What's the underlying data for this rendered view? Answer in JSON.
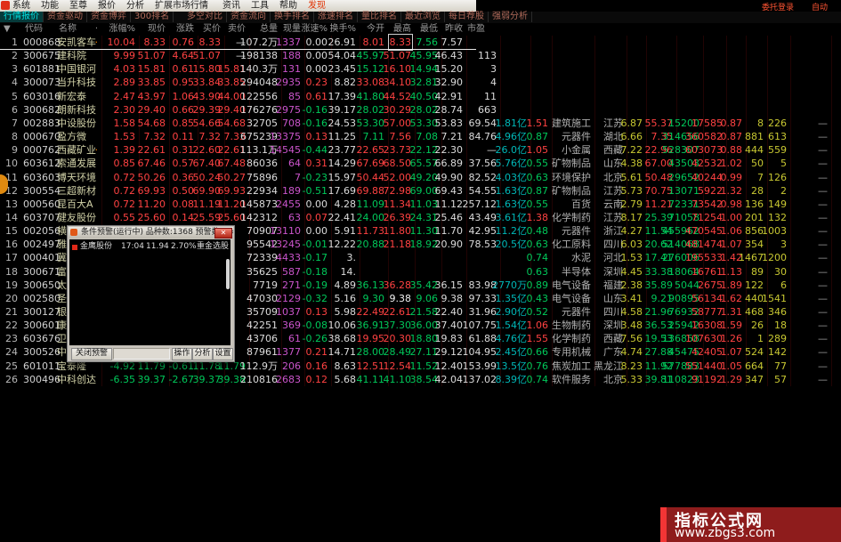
{
  "window": {
    "menu_items": [
      "系统",
      "功能",
      "至尊",
      "报价",
      "分析",
      "扩展市场行情",
      "资讯",
      "工具",
      "帮助"
    ],
    "menu_highlight": "发现",
    "login_text": "委托登录",
    "auto_text": "自动"
  },
  "tabs": [
    "行情报价",
    "资金驱动",
    "资金博弈",
    "300排名",
    "多空对比",
    "资金流向",
    "换手排名",
    "涨速排名",
    "量比排名",
    "最近浏览",
    "每日荐股",
    "强弱分析"
  ],
  "active_tab": "行情报价",
  "sort_indicator": "▼",
  "palette": {
    "up": "#ff4242",
    "down": "#00c85a",
    "neutral": "#e0e0e0",
    "volume_now": "#cc55cc",
    "amount": "#00b8b8",
    "yellow": "#c8c832",
    "name": "#d2d2a8",
    "watermark_bg": "#8e1c1c",
    "watermark_strip": "#f23535"
  },
  "table": {
    "headers": [
      "代码",
      "名称",
      "·",
      "涨幅%",
      "现价",
      "涨跌",
      "买价",
      "卖价",
      "总量",
      "现量",
      "涨速%",
      "换手%",
      "今开",
      "最高",
      "最低",
      "昨收",
      "市盈"
    ],
    "rows": [
      {
        "n": "1",
        "cd": "000868",
        "nm": "安凯客车",
        "mk": "·",
        "pc": "10.04",
        "pr": "8.33",
        "ch": "0.76",
        "bi": "8.33",
        "as": "—",
        "vo": "107.2万",
        "cv": "1337",
        "sp": "0.00",
        "tu": "26.91",
        "op": "8.01",
        "hi": "8.33",
        "lo": "7.56",
        "pv": "7.57",
        "pe": "",
        "am": "",
        "ra": "",
        "in": "",
        "re": "",
        "c1": "",
        "c2": "",
        "c3": "",
        "c4": "",
        "c5": "",
        "c6": "",
        "c7": "",
        "tl": ""
      },
      {
        "n": "2",
        "cd": "300675",
        "nm": "建科院",
        "mk": "",
        "pc": "9.99",
        "pr": "51.07",
        "ch": "4.64",
        "bi": "51.07",
        "as": "—",
        "vo": "198138",
        "cv": "188",
        "sp": "0.00",
        "tu": "54.04",
        "op": "45.97",
        "hi": "51.07",
        "lo": "45.95",
        "pv": "46.43",
        "pe": "113",
        "am": "",
        "ra": "",
        "in": "",
        "re": "",
        "c1": "",
        "c2": "",
        "c3": "",
        "c4": "",
        "c5": "",
        "c6": "",
        "c7": "",
        "tl": ""
      },
      {
        "n": "3",
        "cd": "601881",
        "nm": "中国银河",
        "mk": "",
        "pc": "4.03",
        "pr": "15.81",
        "ch": "0.61",
        "bi": "15.80",
        "as": "15.81",
        "vo": "140.3万",
        "cv": "131",
        "sp": "0.00",
        "tu": "23.45",
        "op": "15.12",
        "hi": "16.10",
        "lo": "14.94",
        "pv": "15.20",
        "pe": "3",
        "am": "",
        "ra": "",
        "in": "",
        "re": "",
        "c1": "",
        "c2": "",
        "c3": "",
        "c4": "",
        "c5": "",
        "c6": "",
        "c7": "",
        "tl": ""
      },
      {
        "n": "4",
        "cd": "300073",
        "nm": "当升科技",
        "mk": "",
        "pc": "2.89",
        "pr": "33.85",
        "ch": "0.95",
        "bi": "33.84",
        "as": "33.85",
        "vo": "294048",
        "cv": "2935",
        "sp": "0.23",
        "tu": "8.82",
        "op": "33.08",
        "hi": "34.10",
        "lo": "32.81",
        "pv": "32.90",
        "pe": "4",
        "am": "",
        "ra": "",
        "in": "",
        "re": "",
        "c1": "",
        "c2": "",
        "c3": "",
        "c4": "",
        "c5": "",
        "c6": "",
        "c7": "",
        "tl": ""
      },
      {
        "n": "5",
        "cd": "603016",
        "nm": "新宏泰",
        "mk": "",
        "pc": "2.47",
        "pr": "43.97",
        "ch": "1.06",
        "bi": "43.90",
        "as": "44.00",
        "vo": "122556",
        "cv": "85",
        "sp": "0.61",
        "tu": "17.39",
        "op": "41.80",
        "hi": "44.52",
        "lo": "40.50",
        "pv": "42.91",
        "pe": "11",
        "am": "",
        "ra": "",
        "in": "",
        "re": "",
        "c1": "",
        "c2": "",
        "c3": "",
        "c4": "",
        "c5": "",
        "c6": "",
        "c7": "",
        "tl": ""
      },
      {
        "n": "6",
        "cd": "300682",
        "nm": "朗新科技",
        "mk": "",
        "pc": "2.30",
        "pr": "29.40",
        "ch": "0.66",
        "bi": "29.39",
        "as": "29.40",
        "vo": "176276",
        "cv": "2975",
        "sp": "-0.16",
        "tu": "39.17",
        "op": "28.02",
        "hi": "30.29",
        "lo": "28.02",
        "pv": "28.74",
        "pe": "663",
        "am": "",
        "ra": "",
        "in": "",
        "re": "",
        "c1": "",
        "c2": "",
        "c3": "",
        "c4": "",
        "c5": "",
        "c6": "",
        "c7": "",
        "tl": ""
      },
      {
        "n": "7",
        "cd": "002883",
        "nm": "中设股份",
        "mk": "",
        "pc": "1.58",
        "pr": "54.68",
        "ch": "0.85",
        "bi": "54.66",
        "as": "54.68",
        "vo": "32705",
        "cv": "708",
        "sp": "-0.16",
        "tu": "24.53",
        "op": "53.30",
        "hi": "57.00",
        "lo": "53.30",
        "pv": "53.83",
        "pe": "69.54",
        "am": "1.81亿",
        "ra": "1.51",
        "in": "建筑施工",
        "re": "江苏",
        "c1": "6.87",
        "c2": "55.37",
        "c3": "15200",
        "c4": "17585",
        "c5": "0.87",
        "c6": "8",
        "c7": "226",
        "tl": "—"
      },
      {
        "n": "8",
        "cd": "000670",
        "nm": "盈方微",
        "mk": "",
        "pc": "1.53",
        "pr": "7.32",
        "ch": "0.11",
        "bi": "7.32",
        "as": "7.33",
        "vo": "675239",
        "cv": "13375",
        "sp": "0.13",
        "tu": "11.25",
        "op": "7.11",
        "hi": "7.56",
        "lo": "7.08",
        "pv": "7.21",
        "pe": "84.76",
        "am": "4.96亿",
        "ra": "0.87",
        "in": "元器件",
        "re": "湖北",
        "c1": "6.66",
        "c2": "7.35",
        "c3": "314656",
        "c4": "360582",
        "c5": "0.87",
        "c6": "881",
        "c7": "613",
        "tl": "—"
      },
      {
        "n": "9",
        "cd": "000762",
        "nm": "西藏矿业",
        "mk": "·",
        "pc": "1.39",
        "pr": "22.61",
        "ch": "0.31",
        "bi": "22.60",
        "as": "22.61",
        "vo": "113.1万",
        "cv": "14545",
        "sp": "-0.44",
        "tu": "23.77",
        "op": "22.65",
        "hi": "23.73",
        "lo": "22.12",
        "pv": "22.30",
        "pe": "—",
        "am": "26.0亿",
        "ra": "1.05",
        "in": "小金属",
        "re": "西藏",
        "c1": "7.22",
        "c2": "22.96",
        "c3": "528307",
        "c4": "603073",
        "c5": "0.88",
        "c6": "444",
        "c7": "559",
        "tl": "—"
      },
      {
        "n": "10",
        "cd": "603612",
        "nm": "索通发展",
        "mk": "",
        "pc": "0.85",
        "pr": "67.46",
        "ch": "0.57",
        "bi": "67.40",
        "as": "67.48",
        "vo": "86036",
        "cv": "64",
        "sp": "0.31",
        "tu": "14.29",
        "op": "67.69",
        "hi": "68.50",
        "lo": "65.57",
        "pv": "66.89",
        "pe": "37.56",
        "am": "5.76亿",
        "ra": "0.55",
        "in": "矿物制品",
        "re": "山东",
        "c1": "4.38",
        "c2": "67.00",
        "c3": "43503",
        "c4": "42532",
        "c5": "1.02",
        "c6": "50",
        "c7": "5",
        "tl": "—"
      },
      {
        "n": "11",
        "cd": "603603",
        "nm": "博天环境",
        "mk": "",
        "pc": "0.72",
        "pr": "50.26",
        "ch": "0.36",
        "bi": "50.24",
        "as": "50.27",
        "vo": "75896",
        "cv": "7",
        "sp": "-0.23",
        "tu": "15.97",
        "op": "50.44",
        "hi": "52.00",
        "lo": "49.20",
        "pv": "49.90",
        "pe": "82.52",
        "am": "4.03亿",
        "ra": "0.63",
        "in": "环境保护",
        "re": "北京",
        "c1": "5.61",
        "c2": "50.48",
        "c3": "29652",
        "c4": "40244",
        "c5": "0.99",
        "c6": "7",
        "c7": "126",
        "tl": "—"
      },
      {
        "n": "12",
        "cd": "300554",
        "nm": "三超新材",
        "mk": "",
        "pc": "0.72",
        "pr": "69.93",
        "ch": "0.50",
        "bi": "69.90",
        "as": "69.93",
        "vo": "22934",
        "cv": "189",
        "sp": "-0.51",
        "tu": "17.69",
        "op": "69.88",
        "hi": "72.98",
        "lo": "69.00",
        "pv": "69.43",
        "pe": "54.55",
        "am": "1.63亿",
        "ra": "0.87",
        "in": "矿物制品",
        "re": "江苏",
        "c1": "5.73",
        "c2": "70.75",
        "c3": "13071",
        "c4": "5922",
        "c5": "1.32",
        "c6": "28",
        "c7": "2",
        "tl": "—"
      },
      {
        "n": "13",
        "cd": "000560",
        "nm": "昆百大A",
        "mk": "",
        "pc": "0.72",
        "pr": "11.20",
        "ch": "0.08",
        "bi": "11.19",
        "as": "11.20",
        "vo": "145873",
        "cv": "2455",
        "sp": "0.00",
        "tu": "4.28",
        "op": "11.09",
        "hi": "11.34",
        "lo": "11.03",
        "pv": "11.12",
        "pe": "257.12",
        "am": "1.63亿",
        "ra": "0.55",
        "in": "百货",
        "re": "云南",
        "c1": "2.79",
        "c2": "11.21",
        "c3": "72331",
        "c4": "73542",
        "c5": "0.98",
        "c6": "136",
        "c7": "149",
        "tl": "—"
      },
      {
        "n": "14",
        "cd": "603707",
        "nm": "健友股份",
        "mk": "",
        "pc": "0.55",
        "pr": "25.60",
        "ch": "0.14",
        "bi": "25.59",
        "as": "25.60",
        "vo": "142312",
        "cv": "63",
        "sp": "0.07",
        "tu": "22.41",
        "op": "24.00",
        "hi": "26.39",
        "lo": "24.31",
        "pv": "25.46",
        "pe": "43.49",
        "am": "3.61亿",
        "ra": "1.38",
        "in": "化学制药",
        "re": "江苏",
        "c1": "8.17",
        "c2": "25.39",
        "c3": "71058",
        "c4": "71254",
        "c5": "1.00",
        "c6": "201",
        "c7": "132",
        "tl": "—"
      },
      {
        "n": "15",
        "cd": "002056",
        "nm": "横店东磁",
        "mk": "",
        "pc": "",
        "pr": "",
        "ch": "",
        "bi": "",
        "as": "",
        "vo": "70907",
        "cv": "13110",
        "sp": "0.00",
        "tu": "5.91",
        "op": "11.73",
        "hi": "11.80",
        "lo": "11.30",
        "pv": "11.70",
        "pe": "42.95",
        "am": "11.2亿",
        "ra": "0.48",
        "in": "元器件",
        "re": "浙江",
        "c1": "4.27",
        "c2": "11.54",
        "c3": "455962",
        "c4": "470545",
        "c5": "1.06",
        "c6": "856",
        "c7": "1003",
        "tl": "—"
      },
      {
        "n": "16",
        "cd": "002497",
        "nm": "雅化集团",
        "mk": "",
        "pc": "",
        "pr": "",
        "ch": "",
        "bi": "",
        "as": "",
        "vo": "95542",
        "cv": "13245",
        "sp": "-0.01",
        "tu": "12.22",
        "op": "20.88",
        "hi": "21.18",
        "lo": "18.92",
        "pv": "20.90",
        "pe": "78.53",
        "am": "20.5亿",
        "ra": "0.63",
        "in": "化工原料",
        "re": "四川",
        "c1": "6.03",
        "c2": "20.62",
        "c3": "514068",
        "c4": "481474",
        "c5": "1.07",
        "c6": "354",
        "c7": "3",
        "tl": "—"
      },
      {
        "n": "17",
        "cd": "000401",
        "nm": "冀东水泥",
        "mk": "",
        "pc": "",
        "pr": "",
        "ch": "",
        "bi": "",
        "as": "",
        "vo": "72339",
        "cv": "4433",
        "sp": "-0.17",
        "tu": "3.",
        "op": "",
        "hi": "",
        "lo": "",
        "pv": "",
        "pe": "",
        "am": "",
        "ra": "0.74",
        "in": "水泥",
        "re": "河北",
        "c1": "1.53",
        "c2": "17.41",
        "c3": "276006",
        "c4": "195533",
        "c5": "1.42",
        "c6": "1467",
        "c7": "1200",
        "tl": "—"
      },
      {
        "n": "18",
        "cd": "300671",
        "nm": "富满电子",
        "mk": "",
        "pc": "",
        "pr": "",
        "ch": "",
        "bi": "",
        "as": "",
        "vo": "35625",
        "cv": "587",
        "sp": "-0.18",
        "tu": "14.",
        "op": "",
        "hi": "",
        "lo": "",
        "pv": "",
        "pe": "",
        "am": "",
        "ra": "0.63",
        "in": "半导体",
        "re": "深圳",
        "c1": "4.45",
        "c2": "33.38",
        "c3": "18064",
        "c4": "16761",
        "c5": "1.13",
        "c6": "89",
        "c7": "30",
        "tl": "—"
      },
      {
        "n": "19",
        "cd": "300650",
        "nm": "太龙照明",
        "mk": "",
        "pc": "",
        "pr": "",
        "ch": "",
        "bi": "",
        "as": "",
        "vo": "7719",
        "cv": "271",
        "sp": "-0.19",
        "tu": "4.89",
        "op": "36.13",
        "hi": "36.28",
        "lo": "35.42",
        "pv": "36.15",
        "pe": "83.98",
        "am": "2770万",
        "ra": "0.89",
        "in": "电气设备",
        "re": "福建",
        "c1": "2.38",
        "c2": "35.89",
        "c3": "5044",
        "c4": "2675",
        "c5": "1.89",
        "c6": "122",
        "c7": "6",
        "tl": "—"
      },
      {
        "n": "20",
        "cd": "002580",
        "nm": "圣阳股份",
        "mk": "",
        "pc": "",
        "pr": "",
        "ch": "",
        "bi": "",
        "as": "",
        "vo": "47030",
        "cv": "2129",
        "sp": "-0.32",
        "tu": "5.16",
        "op": "9.30",
        "hi": "9.38",
        "lo": "9.06",
        "pv": "9.38",
        "pe": "97.33",
        "am": "1.35亿",
        "ra": "0.43",
        "in": "电气设备",
        "re": "山东",
        "c1": "3.41",
        "c2": "9.21",
        "c3": "90895",
        "c4": "56134",
        "c5": "1.62",
        "c6": "440",
        "c7": "1541",
        "tl": "—"
      },
      {
        "n": "21",
        "cd": "300127",
        "nm": "银河磁体",
        "mk": "",
        "pc": "",
        "pr": "",
        "ch": "",
        "bi": "",
        "as": "",
        "vo": "35709",
        "cv": "1037",
        "sp": "0.13",
        "tu": "5.98",
        "op": "22.49",
        "hi": "22.61",
        "lo": "21.58",
        "pv": "22.40",
        "pe": "31.96",
        "am": "2.90亿",
        "ra": "0.52",
        "in": "元器件",
        "re": "四川",
        "c1": "4.58",
        "c2": "21.96",
        "c3": "76932",
        "c4": "58777",
        "c5": "1.31",
        "c6": "468",
        "c7": "346",
        "tl": "—"
      },
      {
        "n": "22",
        "cd": "300601",
        "nm": "康泰生物",
        "mk": "",
        "pc": "",
        "pr": "",
        "ch": "",
        "bi": "",
        "as": "",
        "vo": "42251",
        "cv": "369",
        "sp": "-0.08",
        "tu": "10.06",
        "op": "36.91",
        "hi": "37.30",
        "lo": "36.00",
        "pv": "37.40",
        "pe": "107.75",
        "am": "1.54亿",
        "ra": "1.06",
        "in": "生物制药",
        "re": "深圳",
        "c1": "3.48",
        "c2": "36.53",
        "c3": "25942",
        "c4": "16308",
        "c5": "1.59",
        "c6": "26",
        "c7": "18",
        "tl": "—"
      },
      {
        "n": "23",
        "cd": "603676",
        "nm": "卫信康",
        "mk": "",
        "pc": "",
        "pr": "",
        "ch": "",
        "bi": "",
        "as": "",
        "vo": "43706",
        "cv": "61",
        "sp": "-0.26",
        "tu": "38.68",
        "op": "19.95",
        "hi": "20.30",
        "lo": "18.80",
        "pv": "19.83",
        "pe": "61.88",
        "am": "4.76亿",
        "ra": "1.55",
        "in": "化学制药",
        "re": "西藏",
        "c1": "7.56",
        "c2": "19.53",
        "c3": "136858",
        "c4": "107630",
        "c5": "1.26",
        "c6": "1",
        "c7": "289",
        "tl": "—"
      },
      {
        "n": "24",
        "cd": "300526",
        "nm": "中潜股份",
        "mk": "",
        "pc": "",
        "pr": "",
        "ch": "",
        "bi": "",
        "as": "",
        "vo": "87961",
        "cv": "1377",
        "sp": "0.21",
        "tu": "14.71",
        "op": "28.00",
        "hi": "28.49",
        "lo": "27.11",
        "pv": "29.12",
        "pe": "104.95",
        "am": "2.45亿",
        "ra": "0.66",
        "in": "专用机械",
        "re": "广东",
        "c1": "4.74",
        "c2": "27.88",
        "c3": "45475",
        "c4": "42405",
        "c5": "1.07",
        "c6": "524",
        "c7": "142",
        "tl": "—"
      },
      {
        "n": "25",
        "cd": "601011",
        "nm": "宝泰隆",
        "mk": "",
        "pc": "-4.92",
        "pr": "11.79",
        "ch": "-0.61",
        "bi": "11.78",
        "as": "11.79",
        "vo": "112.9万",
        "cv": "206",
        "sp": "0.16",
        "tu": "8.63",
        "op": "12.51",
        "hi": "12.54",
        "lo": "11.52",
        "pv": "12.40",
        "pe": "153.99",
        "am": "13.5亿",
        "ra": "0.76",
        "in": "焦炭加工",
        "re": "黑龙江",
        "c1": "8.23",
        "c2": "11.92",
        "c3": "577883",
        "c4": "551440",
        "c5": "1.05",
        "c6": "664",
        "c7": "77",
        "tl": "—"
      },
      {
        "n": "26",
        "cd": "300496",
        "nm": "中科创达",
        "mk": "",
        "pc": "-6.35",
        "pr": "39.37",
        "ch": "-2.67",
        "bi": "39.37",
        "as": "39.38",
        "vo": "210816",
        "cv": "2683",
        "sp": "0.12",
        "tu": "5.68",
        "op": "41.11",
        "hi": "41.10",
        "lo": "38.54",
        "pv": "42.04",
        "pe": "137.02",
        "am": "8.39亿",
        "ra": "0.74",
        "in": "软件服务",
        "re": "北京",
        "c1": "5.33",
        "c2": "39.81",
        "c3": "110823",
        "c4": "91192",
        "c5": "1.29",
        "c6": "347",
        "c7": "57",
        "tl": "—"
      }
    ]
  },
  "dialog": {
    "title": "条件预警(运行中) 品种数:1368 预警数:1 »",
    "close_label": "✕",
    "alert": {
      "name": "金鹰股份",
      "time": "17:04",
      "price": "11.94",
      "pct": "2.70%",
      "rule": "重金选股"
    },
    "buttons": {
      "close_alert": "关闭预警",
      "operate": "操作",
      "analyze": "分析",
      "settings": "设置"
    }
  },
  "watermark": {
    "title": "指标公式网",
    "url": "www.zbgs3.com"
  }
}
